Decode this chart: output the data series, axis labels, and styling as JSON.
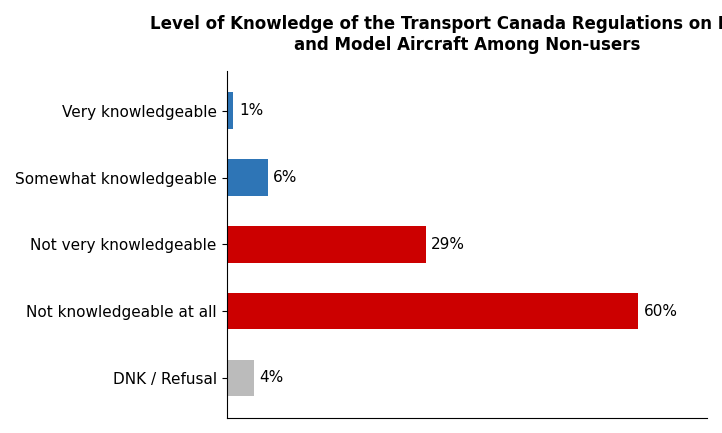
{
  "title_line1": "Level of Knowledge of the Transport Canada Regulations on Drones",
  "title_line2": "and Model Aircraft Among Non-users",
  "categories": [
    "Very knowledgeable",
    "Somewhat knowledgeable",
    "Not very knowledgeable",
    "Not knowledgeable at all",
    "DNK / Refusal"
  ],
  "values": [
    1,
    6,
    29,
    60,
    4
  ],
  "labels": [
    "1%",
    "6%",
    "29%",
    "60%",
    "4%"
  ],
  "bar_colors": [
    "#2E75B6",
    "#2E75B6",
    "#CC0000",
    "#CC0000",
    "#BBBBBB"
  ],
  "bar_hatches": [
    ".",
    ".",
    ".",
    ".",
    "."
  ],
  "bar_edgecolors": [
    "#2E75B6",
    "#2E75B6",
    "#CC0000",
    "#CC0000",
    "#BBBBBB"
  ],
  "xlim": [
    0,
    70
  ],
  "background_color": "#FFFFFF",
  "title_fontsize": 12,
  "label_fontsize": 11,
  "tick_fontsize": 11
}
